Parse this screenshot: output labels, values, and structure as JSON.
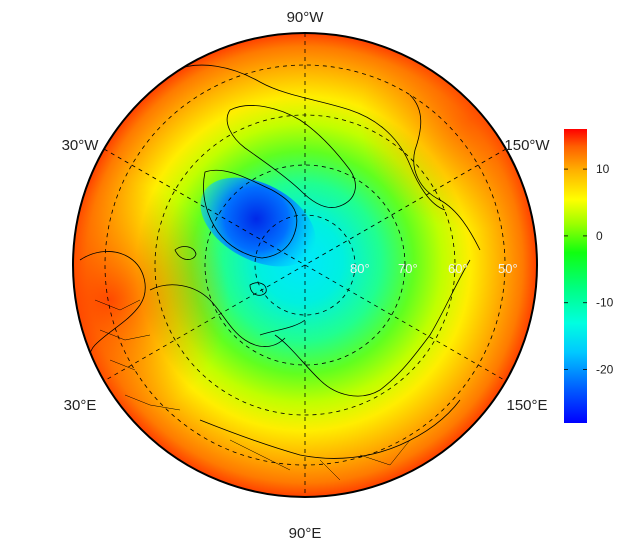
{
  "map": {
    "projection": "polar-stereographic-north",
    "longitude_labels": [
      "90°W",
      "30°W",
      "150°W",
      "30°E",
      "150°E",
      "90°E"
    ],
    "latitude_labels": [
      "80°",
      "70°",
      "60°",
      "50°"
    ],
    "graticule_style": "dashed"
  },
  "colorbar": {
    "min": -28,
    "max": 16,
    "ticks": [
      10,
      0,
      -10,
      -20
    ],
    "tick_labels": [
      "10",
      "0",
      "-10",
      "-20"
    ],
    "colormap": [
      "#0000ff",
      "#00a0ff",
      "#00ffff",
      "#00ff80",
      "#00ff00",
      "#80ff00",
      "#ffff00",
      "#ffb000",
      "#ff7000",
      "#ff0000"
    ]
  },
  "field_description_colors": {
    "pole": "#00e8ff",
    "greenland_min": "#0030f0",
    "mid": "#40ff40",
    "outer": "#ff9000"
  }
}
